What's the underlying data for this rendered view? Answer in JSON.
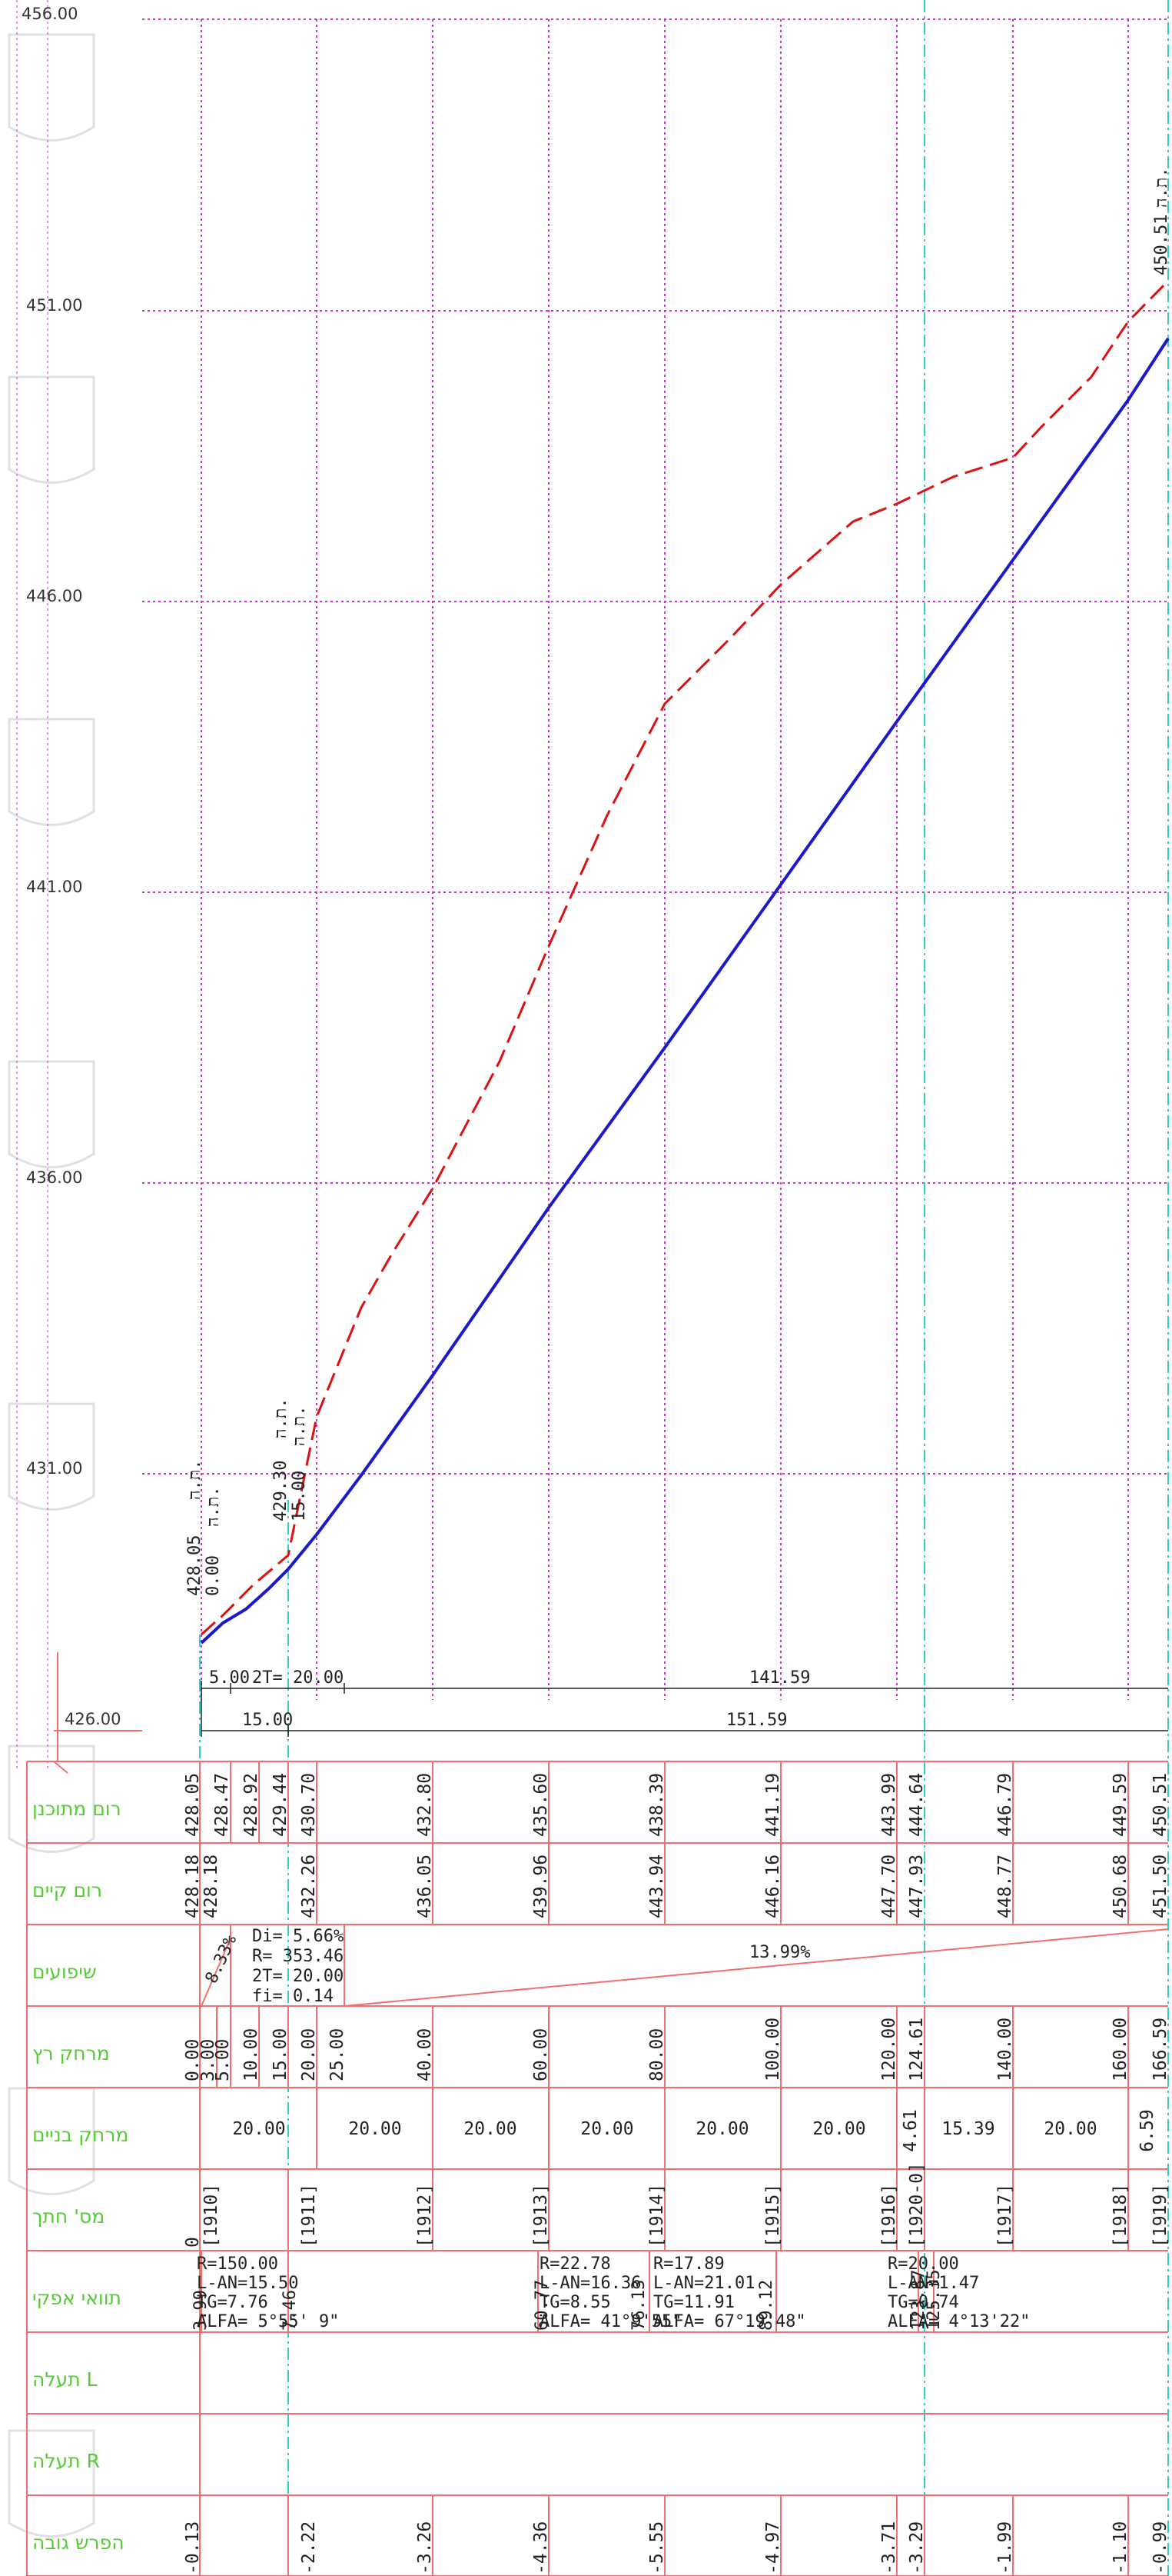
{
  "elevation_labels": [
    "456.00",
    "451.00",
    "446.00",
    "441.00",
    "436.00",
    "431.00",
    "426.00"
  ],
  "row_labels": [
    "רום מתוכנן",
    "רום קיים",
    "שיפועים",
    "מרחק רץ",
    "מרחק בניים",
    "מס' חתך",
    "תוואי אפקי",
    "תעלה L",
    "תעלה R",
    "הפרש גובה"
  ],
  "vertical_curve": {
    "di": "Di= 5.66%",
    "r": "R= 353.46",
    "two_t": "2T= 20.00",
    "fi": "fi= 0.14",
    "slope_left": "8.33%",
    "slope_right": "13.99%"
  },
  "top_dimensions": {
    "seg1": "5.00",
    "seg2": "2T= 20.00",
    "seg3": "141.59",
    "seg4": "15.00",
    "seg5": "151.59"
  },
  "point_annotations": [
    {
      "elev": "428.05",
      "name": "ת.ה.",
      "station": "0.00",
      "station_label": "ת.ה."
    },
    {
      "elev": "429.30",
      "name": "ת.ה.",
      "station": "15.00",
      "station_label": "ת.ה."
    },
    {
      "elev": "450.51",
      "name": "ת.ה."
    }
  ],
  "design_elevations": [
    "428.05",
    "428.47",
    "428.92",
    "429.44",
    "430.70",
    "432.80",
    "435.60",
    "438.39",
    "441.19",
    "443.99",
    "444.64",
    "446.79",
    "449.59",
    "450.51"
  ],
  "existing_elevations": [
    "428.18",
    "428.18",
    "432.26",
    "436.05",
    "439.96",
    "443.94",
    "446.16",
    "447.70",
    "447.93",
    "448.77",
    "450.68",
    "451.50"
  ],
  "running_distances": [
    "0.00",
    "3.00",
    "5.00",
    "10.00",
    "15.00",
    "20.00",
    "25.00",
    "40.00",
    "60.00",
    "80.00",
    "100.00",
    "120.00",
    "124.61",
    "140.00",
    "160.00",
    "166.59"
  ],
  "interval_distances": [
    "20.00",
    "20.00",
    "20.00",
    "20.00",
    "20.00",
    "20.00",
    "4.61",
    "15.39",
    "20.00",
    "6.59"
  ],
  "section_numbers": [
    "0",
    "[1910]",
    "[1911]",
    "[1912]",
    "[1913]",
    "[1914]",
    "[1915]",
    "[1916]",
    "[1920-0]",
    "[1917]",
    "[1918]",
    "[1919]"
  ],
  "horizontal_curves": [
    {
      "r": "R=150.00",
      "l": "L-AN=15.50",
      "tg": "TG=7.76",
      "alfa": "ALFA=   5°55' 9\""
    },
    {
      "r": "R=22.78",
      "l": "L-AN=16.36",
      "tg": "TG=8.55",
      "alfa": "ALFA= 41°9'55\""
    },
    {
      "r": "R=17.89",
      "l": "L-AN=21.01",
      "tg": "TG=11.91",
      "alfa": "ALFA=  67°19'48\""
    },
    {
      "r": "R=20.00",
      "l": "L-AN=1.47",
      "tg": "TG=0.74",
      "alfa": "ALFA=  4°13'22\""
    }
  ],
  "curve_markers": [
    "3.99",
    "7.46",
    "60.77",
    "76.13",
    "89.12",
    "123.87",
    "125.35"
  ],
  "height_differences": [
    "-0.13",
    "-2.22",
    "-3.26",
    "-4.36",
    "-5.55",
    "-4.97",
    "-3.71",
    "-3.29",
    "-1.99",
    "-1.10",
    "-0.99"
  ],
  "colors": {
    "grid": "#cc33cc",
    "table": "#f07070",
    "design_line": "#1a1acc",
    "existing_line": "#dd1111",
    "labels": "#55cc33",
    "station_axis": "#33cccc"
  }
}
